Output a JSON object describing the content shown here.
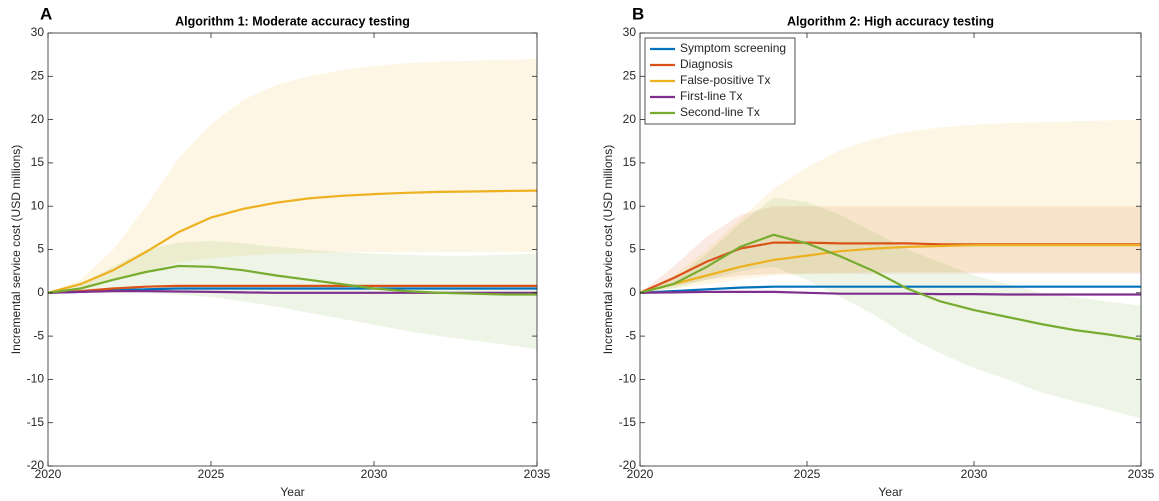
{
  "chart_data": [
    {
      "type": "line",
      "panel": "A",
      "title": "Algorithm 1: Moderate accuracy testing",
      "x_label": "Year",
      "y_label": "Incremental service cost (USD millions)",
      "x": [
        2020,
        2021,
        2022,
        2023,
        2024,
        2025,
        2026,
        2027,
        2028,
        2029,
        2030,
        2031,
        2032,
        2033,
        2034,
        2035
      ],
      "xlim": [
        2020,
        2035
      ],
      "xticks": [
        2020,
        2025,
        2030,
        2035
      ],
      "ylim": [
        -20,
        30
      ],
      "yticks": [
        -20,
        -15,
        -10,
        -5,
        0,
        5,
        10,
        15,
        20,
        25,
        30
      ],
      "series": [
        {
          "color": "#0072BD",
          "values": [
            0,
            0.1,
            0.3,
            0.4,
            0.5,
            0.5,
            0.5,
            0.5,
            0.5,
            0.5,
            0.5,
            0.5,
            0.5,
            0.5,
            0.5,
            0.5
          ]
        },
        {
          "color": "#D95319",
          "values": [
            0,
            0.2,
            0.5,
            0.7,
            0.8,
            0.8,
            0.8,
            0.8,
            0.8,
            0.8,
            0.8,
            0.8,
            0.8,
            0.8,
            0.8,
            0.8
          ]
        },
        {
          "color": "#EDB120",
          "values": [
            0,
            1,
            2.6,
            4.7,
            7,
            8.7,
            9.7,
            10.4,
            10.9,
            11.2,
            11.4,
            11.55,
            11.65,
            11.7,
            11.75,
            11.8
          ],
          "upper": [
            0,
            1.5,
            5,
            10,
            15.5,
            19.5,
            22.3,
            24,
            25,
            25.7,
            26.2,
            26.5,
            26.7,
            26.8,
            26.9,
            27
          ],
          "lower": [
            0,
            0.5,
            1.5,
            2.5,
            3.5,
            4,
            4.3,
            4.5,
            4.6,
            4.7,
            4.7,
            4.7,
            4.7,
            4.7,
            4.7,
            4.7
          ]
        },
        {
          "color": "#7E2F8E",
          "values": [
            0,
            0.1,
            0.2,
            0.2,
            0.15,
            0.1,
            0.05,
            0,
            0,
            0,
            0,
            0,
            0,
            0,
            0,
            0
          ]
        },
        {
          "color": "#77AC30",
          "values": [
            0,
            0.5,
            1.5,
            2.4,
            3.1,
            3,
            2.6,
            2,
            1.5,
            1,
            0.5,
            0.2,
            0,
            -0.1,
            -0.2,
            -0.2
          ],
          "upper": [
            0,
            1,
            3,
            5,
            5.8,
            6,
            5.7,
            5.3,
            5,
            4.7,
            4.5,
            4.4,
            4.3,
            4.3,
            4.4,
            4.5
          ],
          "lower": [
            0,
            0,
            0,
            0,
            -0.2,
            -0.5,
            -1,
            -1.6,
            -2.3,
            -3,
            -3.7,
            -4.4,
            -5,
            -5.5,
            -6,
            -6.5
          ]
        }
      ]
    },
    {
      "type": "line",
      "panel": "B",
      "title": "Algorithm 2: High accuracy testing",
      "x_label": "Year",
      "y_label": "Incremental service cost (USD millions)",
      "x": [
        2020,
        2021,
        2022,
        2023,
        2024,
        2025,
        2026,
        2027,
        2028,
        2029,
        2030,
        2031,
        2032,
        2033,
        2034,
        2035
      ],
      "xlim": [
        2020,
        2035
      ],
      "xticks": [
        2020,
        2025,
        2030,
        2035
      ],
      "ylim": [
        -20,
        30
      ],
      "yticks": [
        -20,
        -15,
        -10,
        -5,
        0,
        5,
        10,
        15,
        20,
        25,
        30
      ],
      "legend": "upper left",
      "series": [
        {
          "name": "Symptom screening",
          "color": "#0072BD",
          "values": [
            0,
            0.2,
            0.4,
            0.6,
            0.7,
            0.7,
            0.7,
            0.7,
            0.7,
            0.7,
            0.7,
            0.7,
            0.7,
            0.7,
            0.7,
            0.7
          ]
        },
        {
          "name": "Diagnosis",
          "color": "#D95319",
          "values": [
            0,
            1.7,
            3.6,
            5.1,
            5.8,
            5.8,
            5.7,
            5.7,
            5.7,
            5.6,
            5.6,
            5.6,
            5.6,
            5.6,
            5.6,
            5.6
          ],
          "upper": [
            0,
            3,
            6.5,
            9,
            10,
            10,
            10,
            10,
            10,
            10,
            10,
            10,
            10,
            10,
            10,
            10
          ],
          "lower": [
            0,
            0.8,
            1.5,
            2,
            2.2,
            2.2,
            2.2,
            2.2,
            2.2,
            2.2,
            2.2,
            2.2,
            2.2,
            2.2,
            2.2,
            2.2
          ]
        },
        {
          "name": "False-positive Tx",
          "color": "#EDB120",
          "values": [
            0,
            1,
            2,
            3,
            3.8,
            4.3,
            4.8,
            5.1,
            5.3,
            5.4,
            5.5,
            5.5,
            5.5,
            5.5,
            5.5,
            5.5
          ],
          "upper": [
            0,
            2,
            5,
            8.5,
            12,
            14.5,
            16.5,
            17.8,
            18.6,
            19.1,
            19.4,
            19.6,
            19.7,
            19.8,
            19.9,
            20
          ],
          "lower": [
            0,
            0.5,
            1,
            1.5,
            2,
            2.2,
            2.3,
            2.4,
            2.4,
            2.4,
            2.4,
            2.4,
            2.4,
            2.4,
            2.4,
            2.4
          ]
        },
        {
          "name": "First-line Tx",
          "color": "#7E2F8E",
          "values": [
            0,
            0.05,
            0.1,
            0.1,
            0.1,
            0,
            -0.1,
            -0.1,
            -0.1,
            -0.15,
            -0.15,
            -0.2,
            -0.2,
            -0.2,
            -0.2,
            -0.2
          ]
        },
        {
          "name": "Second-line Tx",
          "color": "#77AC30",
          "values": [
            0,
            1,
            3,
            5.3,
            6.7,
            5.7,
            4.2,
            2.5,
            0.5,
            -1,
            -2,
            -2.8,
            -3.6,
            -4.3,
            -4.8,
            -5.4
          ],
          "upper": [
            0,
            1.5,
            4.5,
            8,
            11,
            10.5,
            9,
            7,
            5,
            3.5,
            2,
            1,
            0,
            -0.5,
            -1,
            -1.5
          ],
          "lower": [
            0,
            0.5,
            1.5,
            2.5,
            3,
            1.5,
            -0.5,
            -2.5,
            -5,
            -7,
            -8.7,
            -10,
            -11.5,
            -12.5,
            -13.5,
            -14.5
          ]
        }
      ]
    }
  ]
}
